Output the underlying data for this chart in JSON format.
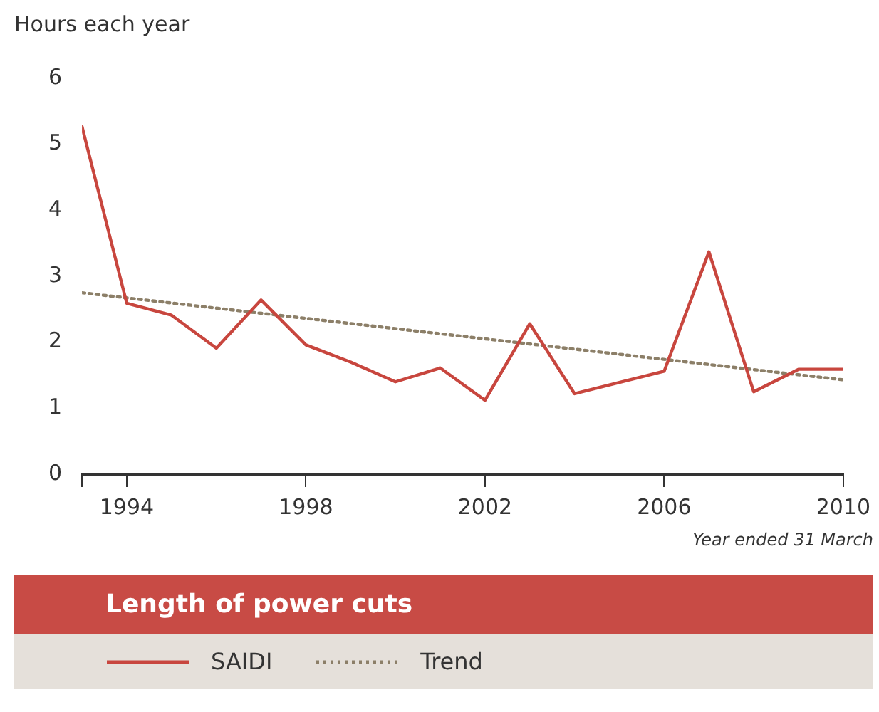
{
  "chart_data": {
    "type": "line",
    "title": "Length of power cuts",
    "ylabel": "Hours each year",
    "annotations": [
      "Year ended 31 March"
    ],
    "x": [
      1993,
      1994,
      1995,
      1996,
      1997,
      1998,
      1999,
      2000,
      2001,
      2002,
      2003,
      2004,
      2005,
      2006,
      2007,
      2008,
      2009,
      2010
    ],
    "series": [
      {
        "name": "SAIDI",
        "color": "#c8463e",
        "line_style": "solid",
        "values": [
          5.27,
          2.59,
          2.41,
          1.91,
          2.64,
          1.96,
          1.7,
          1.4,
          1.61,
          1.12,
          2.28,
          1.22,
          1.39,
          1.56,
          3.37,
          1.25,
          1.59,
          1.59
        ]
      },
      {
        "name": "Trend",
        "type": "line",
        "color": "#8c7f68",
        "line_style": "dotted",
        "x": [
          1993,
          2010
        ],
        "values": [
          2.75,
          1.43
        ]
      }
    ],
    "xlim": [
      1993,
      2010
    ],
    "xticks": [
      {
        "value": 1993,
        "label": null
      },
      1994,
      1998,
      2002,
      2006,
      2010
    ],
    "ylim": [
      0,
      6
    ],
    "yticks": [
      0,
      1,
      2,
      3,
      4,
      5,
      6
    ],
    "grid": false,
    "legend": "bottom",
    "marker": "none"
  }
}
